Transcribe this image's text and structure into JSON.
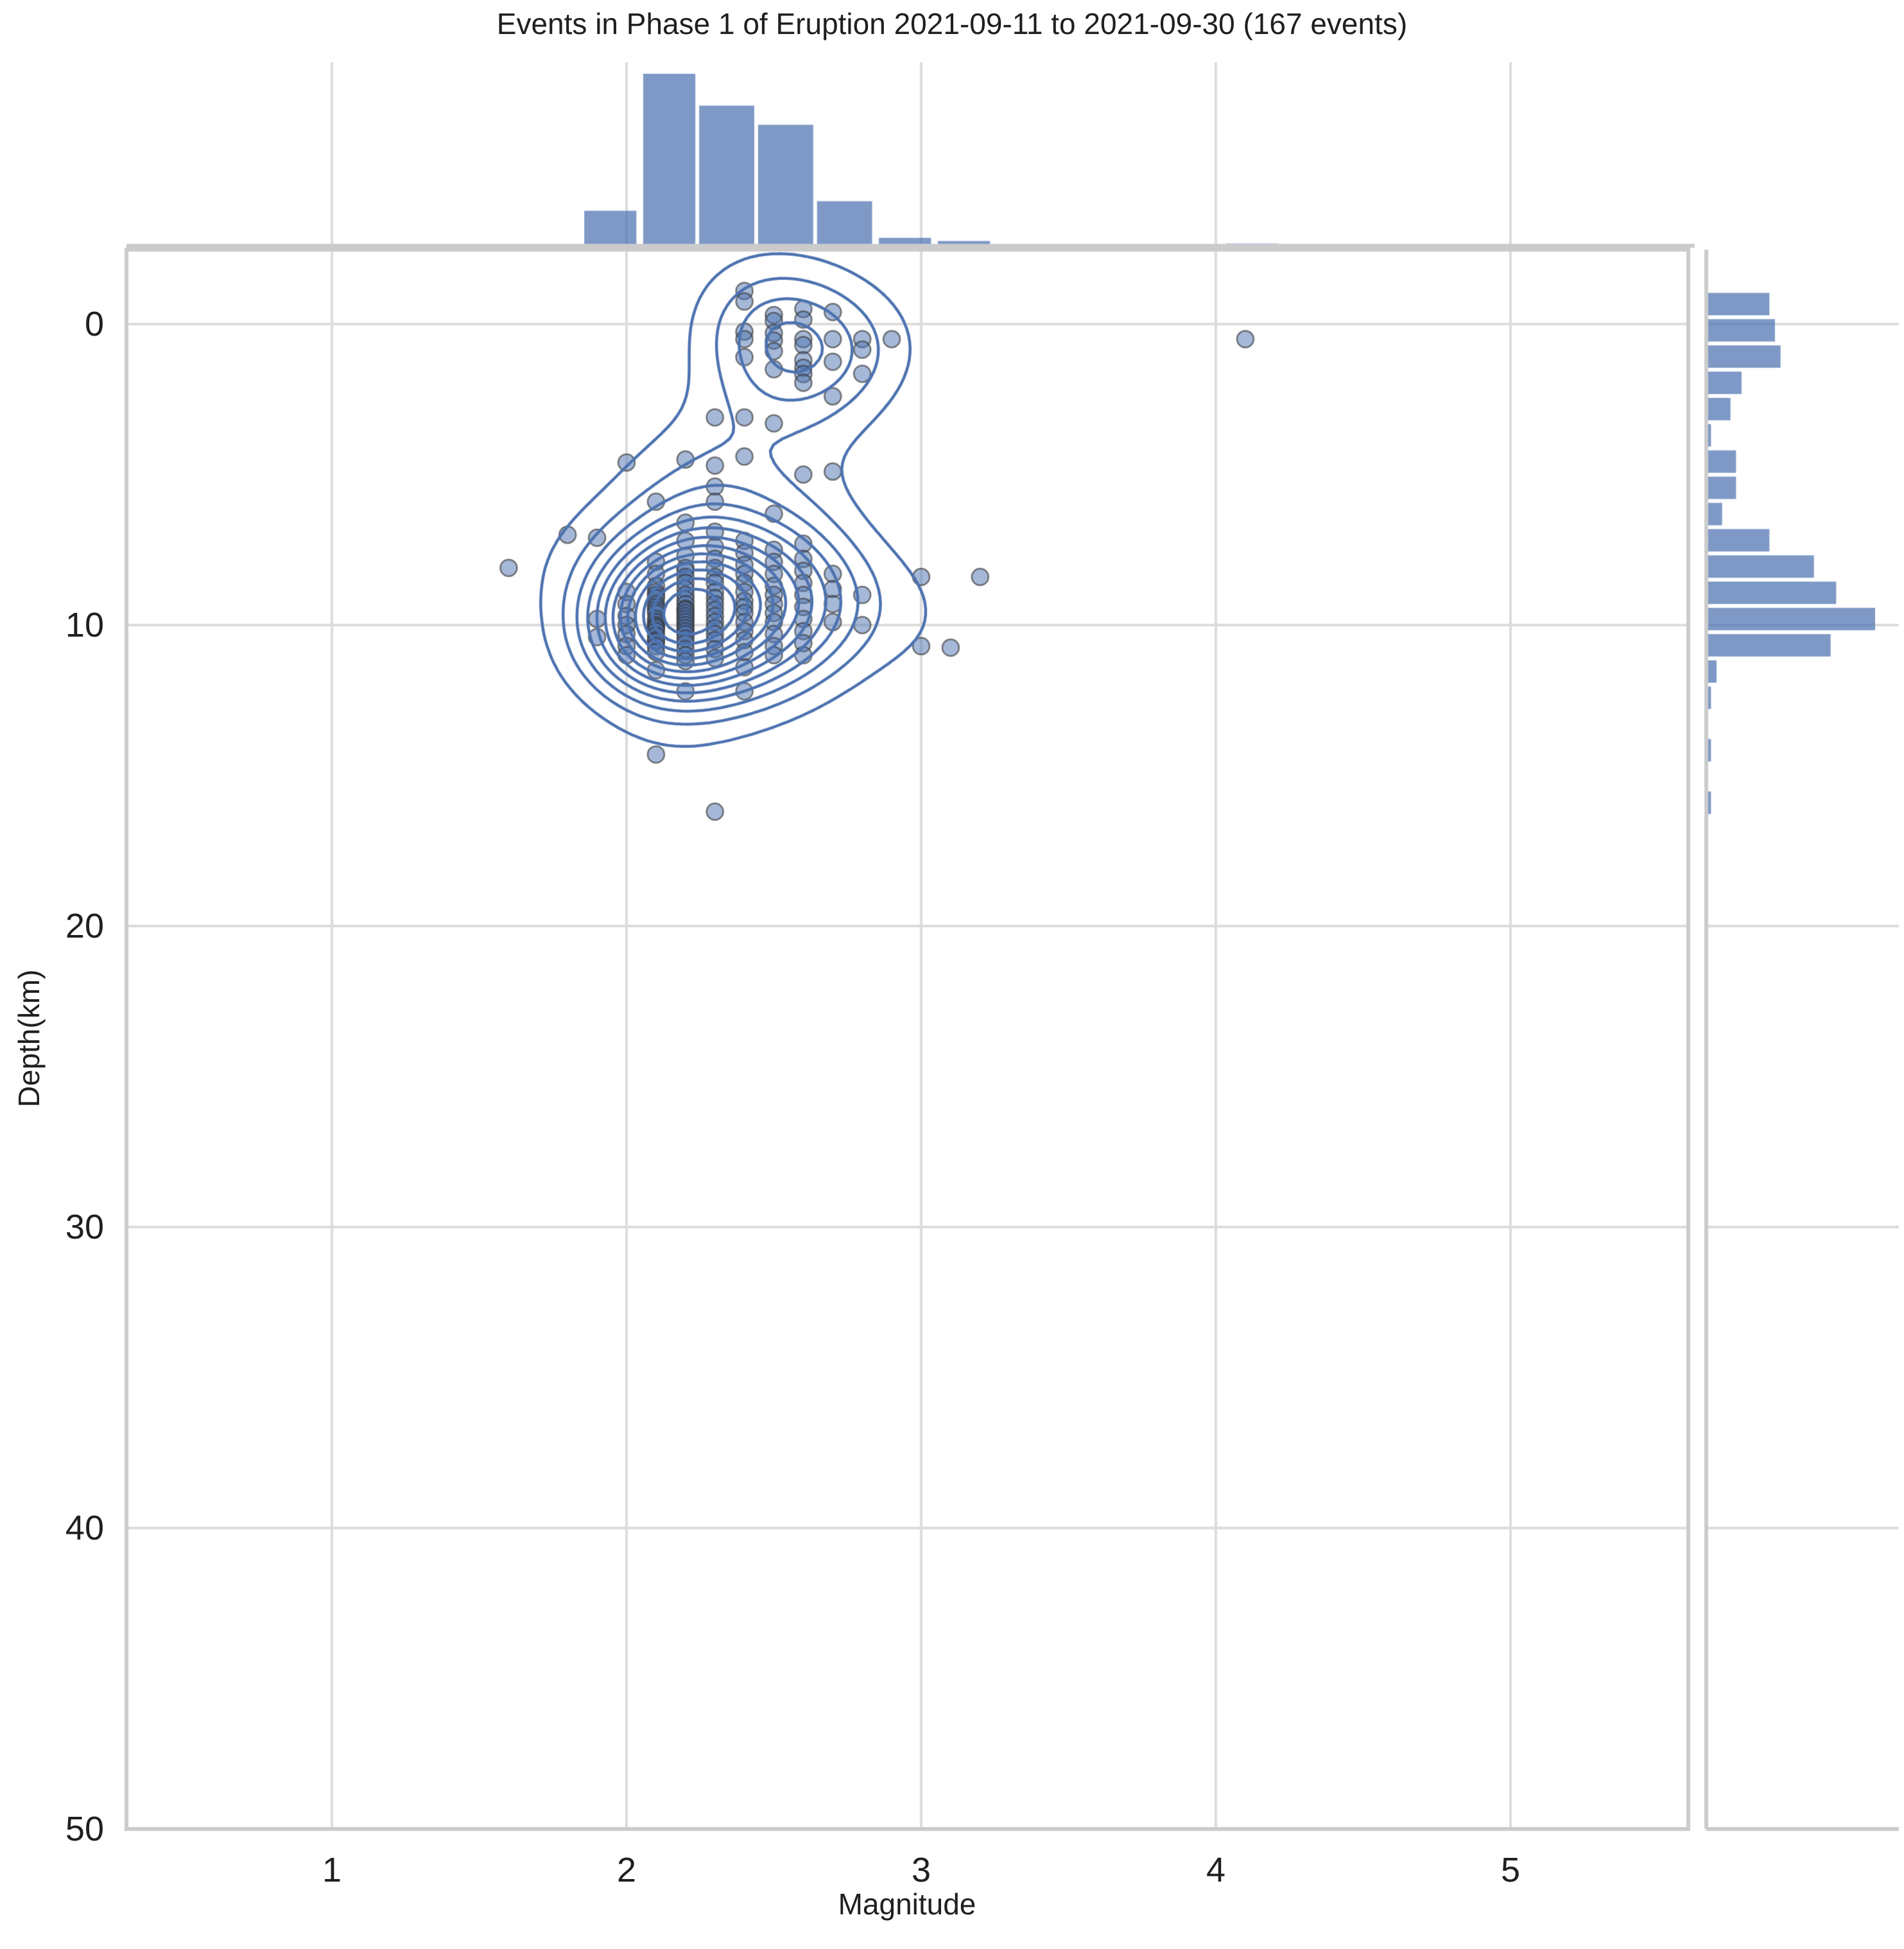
{
  "title": "Events in Phase 1 of Eruption 2021-09-11 to 2021-09-30 (167 events)",
  "axes": {
    "x_label": "Magnitude",
    "y_label": "Depth(km)",
    "x_ticks": [
      "1",
      "2",
      "3",
      "4",
      "5"
    ],
    "y_ticks": [
      "0",
      "10",
      "20",
      "30",
      "40",
      "50"
    ]
  },
  "colors": {
    "contour": "#4c72b0",
    "scatter_fill": "rgba(76,114,176,0.5)",
    "scatter_edge": "rgba(55,55,55,0.65)",
    "hist_fill": "rgba(76,114,176,0.72)",
    "grid": "#dcdcdc",
    "spine": "#cbcbcb",
    "text": "#262626"
  },
  "chart_data": {
    "type": "scatter",
    "subtype": "jointplot-scatter-kde-with-marginal-histograms",
    "title": "Events in Phase 1 of Eruption 2021-09-11 to 2021-09-30 (167 events)",
    "xlabel": "Magnitude",
    "ylabel": "Depth(km)",
    "xlim": [
      0.3,
      5.6
    ],
    "ylim": [
      -2.5,
      50
    ],
    "y_axis_inverted": true,
    "grid": true,
    "n_events": 167,
    "scatter": {
      "magnitude": [
        1.6,
        1.8,
        1.9,
        1.9,
        1.9,
        2.0,
        2.0,
        2.0,
        2.0,
        2.0,
        2.0,
        2.0,
        2.0,
        2.1,
        2.1,
        2.1,
        2.1,
        2.1,
        2.1,
        2.1,
        2.1,
        2.1,
        2.1,
        2.1,
        2.1,
        2.1,
        2.1,
        2.1,
        2.1,
        2.1,
        2.1,
        2.1,
        2.1,
        2.1,
        2.1,
        2.1,
        2.1,
        2.2,
        2.2,
        2.2,
        2.2,
        2.2,
        2.2,
        2.2,
        2.2,
        2.2,
        2.2,
        2.2,
        2.2,
        2.2,
        2.2,
        2.2,
        2.2,
        2.2,
        2.2,
        2.2,
        2.2,
        2.2,
        2.2,
        2.2,
        2.2,
        2.2,
        2.2,
        2.2,
        2.2,
        2.3,
        2.3,
        2.3,
        2.3,
        2.3,
        2.3,
        2.3,
        2.3,
        2.3,
        2.3,
        2.3,
        2.3,
        2.3,
        2.3,
        2.3,
        2.3,
        2.3,
        2.3,
        2.3,
        2.3,
        2.3,
        2.3,
        2.4,
        2.4,
        2.4,
        2.4,
        2.4,
        2.4,
        2.4,
        2.4,
        2.4,
        2.4,
        2.4,
        2.4,
        2.4,
        2.4,
        2.4,
        2.4,
        2.4,
        2.4,
        2.4,
        2.4,
        2.4,
        2.4,
        2.5,
        2.5,
        2.5,
        2.5,
        2.5,
        2.5,
        2.5,
        2.5,
        2.5,
        2.5,
        2.5,
        2.5,
        2.5,
        2.5,
        2.5,
        2.5,
        2.5,
        2.5,
        2.5,
        2.6,
        2.6,
        2.6,
        2.6,
        2.6,
        2.6,
        2.6,
        2.6,
        2.6,
        2.6,
        2.6,
        2.6,
        2.6,
        2.6,
        2.6,
        2.6,
        2.6,
        2.6,
        2.6,
        2.7,
        2.7,
        2.7,
        2.7,
        2.7,
        2.7,
        2.7,
        2.7,
        2.7,
        2.8,
        2.8,
        2.8,
        2.8,
        2.8,
        2.9,
        3.0,
        3.0,
        3.1,
        3.2,
        4.1
      ],
      "depth_km": [
        8.1,
        7.0,
        7.1,
        9.8,
        10.4,
        4.6,
        8.9,
        9.3,
        9.7,
        10.0,
        10.3,
        10.7,
        11.0,
        5.9,
        7.9,
        8.3,
        8.7,
        8.9,
        9.0,
        9.1,
        9.3,
        9.4,
        9.5,
        9.6,
        9.8,
        9.9,
        10.0,
        10.05,
        10.1,
        10.2,
        10.35,
        10.5,
        10.55,
        10.7,
        10.9,
        11.5,
        14.3,
        4.5,
        6.6,
        7.2,
        7.7,
        8.1,
        8.2,
        8.4,
        8.6,
        8.8,
        9.0,
        9.15,
        9.3,
        9.45,
        9.5,
        9.6,
        9.7,
        9.8,
        9.9,
        10.0,
        10.1,
        10.2,
        10.3,
        10.45,
        10.6,
        10.8,
        11.0,
        11.2,
        12.2,
        3.1,
        4.7,
        5.4,
        5.9,
        6.9,
        7.4,
        7.8,
        8.1,
        8.4,
        8.6,
        8.9,
        9.1,
        9.3,
        9.5,
        9.7,
        9.9,
        10.1,
        10.3,
        10.5,
        10.8,
        11.1,
        16.2,
        -1.1,
        -0.75,
        0.25,
        0.5,
        1.1,
        3.1,
        4.4,
        7.2,
        7.6,
        8.0,
        8.3,
        8.6,
        8.9,
        9.2,
        9.4,
        9.6,
        9.9,
        10.2,
        10.5,
        10.9,
        11.4,
        12.2,
        -0.3,
        -0.1,
        0.3,
        0.55,
        0.9,
        1.5,
        3.3,
        6.3,
        7.5,
        7.9,
        8.3,
        8.7,
        9.0,
        9.3,
        9.6,
        9.9,
        10.3,
        10.7,
        11.0,
        -0.5,
        -0.15,
        0.5,
        0.7,
        1.2,
        1.45,
        1.66,
        1.95,
        5.0,
        7.3,
        7.8,
        8.2,
        8.6,
        9.0,
        9.4,
        9.8,
        10.2,
        10.6,
        11.0,
        -0.4,
        0.5,
        1.25,
        2.4,
        4.9,
        8.3,
        8.8,
        9.3,
        9.9,
        0.5,
        0.85,
        1.65,
        9.0,
        10.0,
        0.5,
        8.4,
        10.7,
        10.75,
        8.4,
        0.5
      ]
    },
    "kde": {
      "bandwidth_magnitude": 0.16,
      "bandwidth_depth": 1.5,
      "levels": 13
    },
    "top_histogram": {
      "axis": "magnitude",
      "bins": [
        [
          1.45,
          1.64
        ],
        [
          1.64,
          1.83
        ],
        [
          1.85,
          2.04
        ],
        [
          2.05,
          2.24
        ],
        [
          2.24,
          2.44
        ],
        [
          2.44,
          2.64
        ],
        [
          2.64,
          2.84
        ],
        [
          2.85,
          3.04
        ],
        [
          3.05,
          3.24
        ],
        [
          4.03,
          4.22
        ]
      ],
      "counts": [
        0.6,
        0.6,
        11,
        54,
        44,
        38,
        14,
        2.5,
        1.5,
        0.7
      ]
    },
    "right_histogram": {
      "axis": "depth_km",
      "bin_start": -1.1,
      "bin_width": 0.872,
      "counts": [
        11,
        12,
        13,
        6,
        4,
        0.5,
        5,
        5,
        2.5,
        11,
        19,
        23,
        30,
        22,
        1.5,
        0.5,
        0,
        0.5,
        0,
        0.5
      ]
    }
  }
}
